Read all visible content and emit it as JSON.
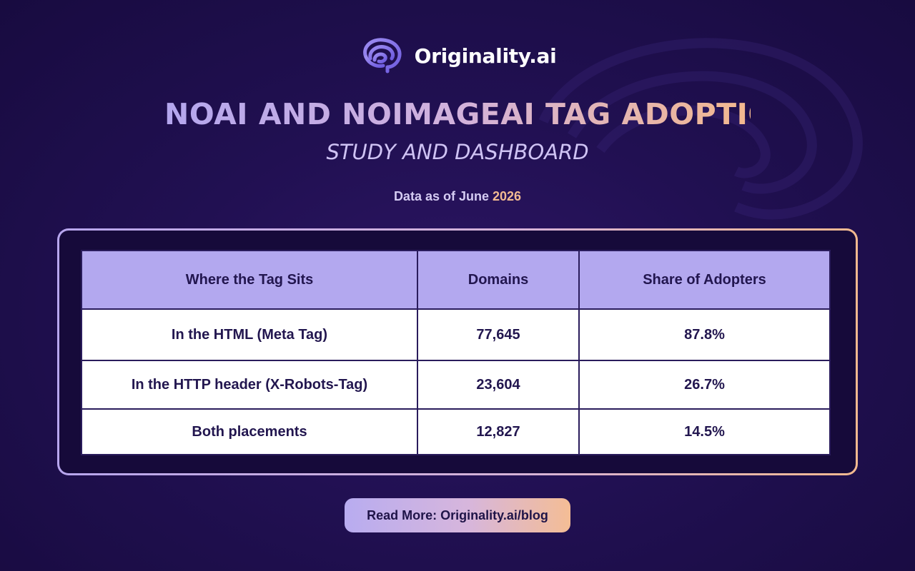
{
  "brand": {
    "name": "Originality.ai",
    "logo_icon": "brain-icon",
    "accent_colors": [
      "#b4a6ee",
      "#f3b88e"
    ]
  },
  "header": {
    "title": "NOAI AND NOIMAGEAI TAG ADOPTION",
    "subtitle": "STUDY AND DASHBOARD",
    "data_label": "Data as of June",
    "data_year": "2026"
  },
  "table": {
    "headers": [
      "Where the Tag Sits",
      "Domains",
      "Share of Adopters"
    ],
    "rows": [
      [
        "In the HTML (Meta Tag)",
        "77,645",
        "87.8%"
      ],
      [
        "In the HTTP header (X-Robots-Tag)",
        "23,604",
        "26.7%"
      ],
      [
        "Both placements",
        "12,827",
        "14.5%"
      ]
    ]
  },
  "cta": {
    "label": "Read More: Originality.ai/blog"
  }
}
